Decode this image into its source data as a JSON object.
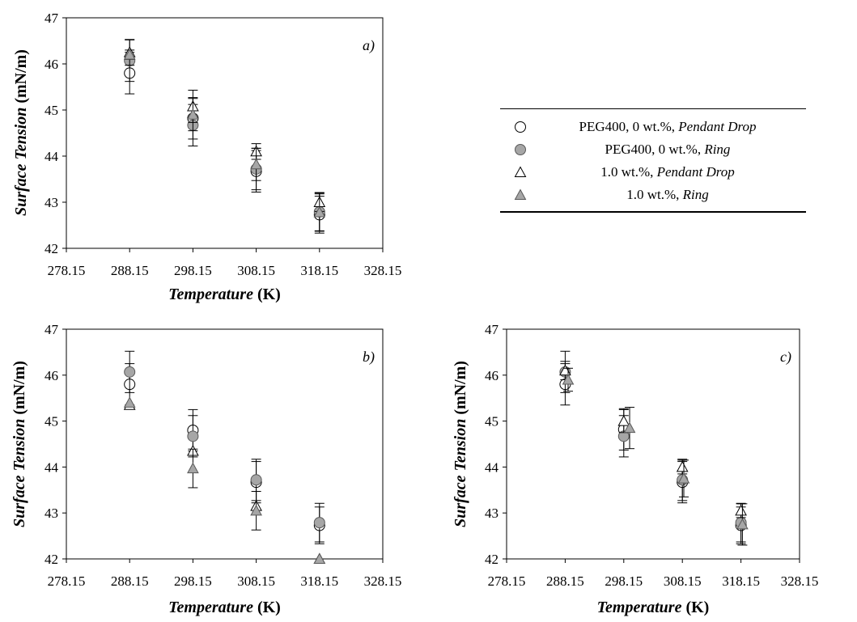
{
  "legend": [
    {
      "marker": "circle",
      "fill": "#ffffff",
      "label_plain": "PEG400, 0 wt.%, ",
      "label_italic": "Pendant Drop"
    },
    {
      "marker": "circle",
      "fill": "#a6a6a6",
      "label_plain": "PEG400, 0 wt.%, ",
      "label_italic": "Ring"
    },
    {
      "marker": "triangle",
      "fill": "#ffffff",
      "label_plain": "1.0 wt.%, ",
      "label_italic": "Pendant Drop"
    },
    {
      "marker": "triangle",
      "fill": "#a6a6a6",
      "label_plain": "1.0 wt.%, ",
      "label_italic": "Ring"
    }
  ],
  "chart_data": [
    {
      "type": "scatter",
      "panel_label": "a)",
      "ylabel_italic": "Surface Tension",
      "ylabel_unit": "(mN/m)",
      "xlabel_italic": "Temperature",
      "xlabel_unit": "(K)",
      "xlim": [
        278.15,
        328.15
      ],
      "ylim": [
        42,
        47
      ],
      "xticks": [
        "278.15",
        "288.15",
        "298.15",
        "308.15",
        "318.15",
        "328.15"
      ],
      "yticks": [
        "42",
        "43",
        "44",
        "45",
        "46",
        "47"
      ],
      "grid": false,
      "series": [
        {
          "legend_index": 0,
          "x": [
            288.15,
            298.15,
            308.15,
            318.15
          ],
          "y": [
            45.8,
            44.82,
            43.67,
            42.73
          ],
          "err": [
            0.45,
            0.45,
            0.45,
            0.4
          ]
        },
        {
          "legend_index": 1,
          "x": [
            288.15,
            298.15,
            308.15,
            318.15
          ],
          "y": [
            46.07,
            44.67,
            43.72,
            42.79
          ],
          "err": [
            0.45,
            0.45,
            0.45,
            0.42
          ]
        },
        {
          "legend_index": 2,
          "x": [
            288.15,
            298.15,
            308.15,
            318.15
          ],
          "y": [
            46.25,
            45.08,
            44.1,
            43.0
          ],
          "err": [
            0.28,
            0.35,
            0.17,
            0.2
          ]
        },
        {
          "legend_index": 3,
          "x": [
            288.15,
            298.15,
            308.15,
            318.15
          ],
          "y": [
            46.2,
            44.9,
            43.82,
            42.78
          ],
          "err": [
            0.1,
            0.35,
            0.35,
            0.4
          ]
        }
      ]
    },
    {
      "type": "scatter",
      "panel_label": "b)",
      "ylabel_italic": "Surface Tension",
      "ylabel_unit": "(mN/m)",
      "xlabel_italic": "Temperature",
      "xlabel_unit": "(K)",
      "xlim": [
        278.15,
        328.15
      ],
      "ylim": [
        42,
        47
      ],
      "xticks": [
        "278.15",
        "288.15",
        "298.15",
        "308.15",
        "318.15",
        "328.15"
      ],
      "yticks": [
        "42",
        "43",
        "44",
        "45",
        "46",
        "47"
      ],
      "grid": false,
      "series": [
        {
          "legend_index": 0,
          "x": [
            288.15,
            298.15,
            308.15,
            318.15
          ],
          "y": [
            45.8,
            44.8,
            43.67,
            42.73
          ],
          "err": [
            0.45,
            0.45,
            0.45,
            0.4
          ]
        },
        {
          "legend_index": 1,
          "x": [
            288.15,
            298.15,
            308.15,
            318.15
          ],
          "y": [
            46.07,
            44.67,
            43.72,
            42.79
          ],
          "err": [
            0.45,
            0.45,
            0.45,
            0.42
          ]
        },
        {
          "legend_index": 2,
          "x": [
            288.15,
            298.15,
            308.15,
            318.15
          ],
          "y": [
            45.35,
            44.35,
            43.15,
            42.0
          ],
          "err": [
            0,
            0,
            0,
            0
          ]
        },
        {
          "legend_index": 3,
          "x": [
            288.15,
            298.15,
            308.15,
            318.15
          ],
          "y": [
            45.4,
            43.97,
            43.05,
            42.0
          ],
          "err": [
            0,
            0.42,
            0.42,
            0
          ]
        }
      ]
    },
    {
      "type": "scatter",
      "panel_label": "c)",
      "ylabel_italic": "Surface Tension",
      "ylabel_unit": "(mN/m)",
      "xlabel_italic": "Temperature",
      "xlabel_unit": "(K)",
      "xlim": [
        278.15,
        328.15
      ],
      "ylim": [
        42,
        47
      ],
      "xticks": [
        "278.15",
        "288.15",
        "298.15",
        "308.15",
        "318.15",
        "328.15"
      ],
      "yticks": [
        "42",
        "43",
        "44",
        "45",
        "46",
        "47"
      ],
      "grid": false,
      "series": [
        {
          "legend_index": 0,
          "x": [
            288.15,
            298.15,
            308.15,
            318.15
          ],
          "y": [
            45.8,
            44.82,
            43.67,
            42.73
          ],
          "err": [
            0.45,
            0.45,
            0.45,
            0.4
          ]
        },
        {
          "legend_index": 1,
          "x": [
            288.15,
            298.15,
            308.15,
            318.15
          ],
          "y": [
            46.07,
            44.67,
            43.72,
            42.79
          ],
          "err": [
            0.45,
            0.45,
            0.45,
            0.42
          ]
        },
        {
          "legend_index": 2,
          "x": [
            288.15,
            298.15,
            308.15,
            318.15
          ],
          "y": [
            46.1,
            45.0,
            44.0,
            43.05
          ],
          "err": [
            0.2,
            0.25,
            0.15,
            0.15
          ]
        },
        {
          "legend_index": 3,
          "x": [
            288.65,
            299.15,
            308.4,
            318.4
          ],
          "y": [
            45.9,
            44.85,
            43.75,
            42.75
          ],
          "err": [
            0.25,
            0.45,
            0.4,
            0.45
          ]
        }
      ]
    }
  ]
}
